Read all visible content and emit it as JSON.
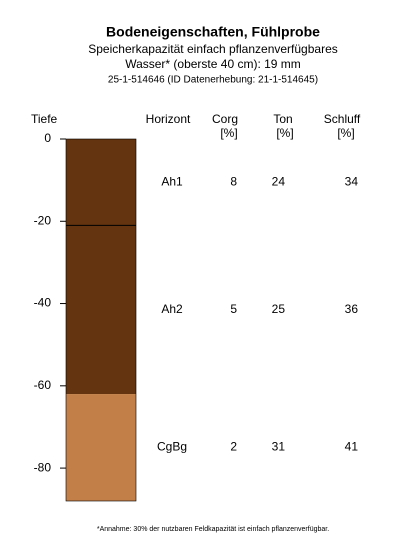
{
  "chart_data": {
    "type": "soil-profile",
    "title": "Bodeneigenschaften, Fühlprobe",
    "subtitle": [
      "Speicherkapazität einfach pflanzenverfügbares",
      "Wasser* (oberste 40 cm): 19 mm"
    ],
    "id_line": "25-1-514646 (ID Datenerhebung: 21-1-514645)",
    "ylabel": "Tiefe",
    "ylim": [
      -88,
      0
    ],
    "yticks": [
      0,
      -20,
      -40,
      -60,
      -80
    ],
    "columns": {
      "horizon": "Horizont",
      "corg": [
        "Corg",
        "[%]"
      ],
      "ton": [
        "Ton",
        "[%]"
      ],
      "schluff": [
        "Schluff",
        "[%]"
      ]
    },
    "layers": [
      {
        "name": "Ah1",
        "top": 0,
        "bottom": -21,
        "color": "#63340f",
        "corg": 8,
        "ton": 24,
        "schluff": 34
      },
      {
        "name": "Ah2",
        "top": -21,
        "bottom": -62,
        "color": "#63340f",
        "corg": 5,
        "ton": 25,
        "schluff": 36
      },
      {
        "name": "CgBg",
        "top": -62,
        "bottom": -88,
        "color": "#c27f48",
        "corg": 2,
        "ton": 31,
        "schluff": 41
      }
    ],
    "footnote": "*Annahme: 30% der nutzbaren Feldkapazität ist einfach pflanzenverfügbar."
  }
}
